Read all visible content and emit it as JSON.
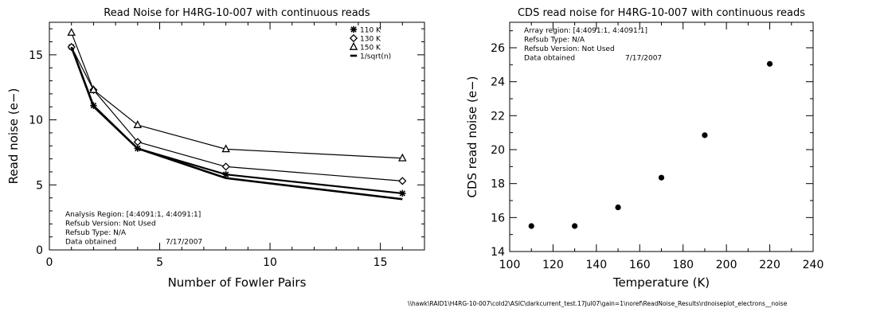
{
  "chart_data": [
    {
      "type": "line",
      "title": "Read Noise for H4RG-10-007 with continuous reads",
      "xlabel": "Number of Fowler Pairs",
      "ylabel": "Read noise (e−)",
      "xlim": [
        0,
        17
      ],
      "ylim": [
        0,
        17.5
      ],
      "xticks": [
        0,
        5,
        10,
        15
      ],
      "yticks": [
        0,
        5,
        10,
        15
      ],
      "legend_position": "top-right",
      "series": [
        {
          "name": "110 K",
          "marker": "asterisk",
          "x": [
            1,
            2,
            4,
            8,
            16
          ],
          "y": [
            15.6,
            11.1,
            7.8,
            5.8,
            4.35
          ]
        },
        {
          "name": "130 K",
          "marker": "diamond",
          "x": [
            1,
            2,
            4,
            8,
            16
          ],
          "y": [
            15.6,
            12.3,
            8.3,
            6.4,
            5.3
          ]
        },
        {
          "name": "150 K",
          "marker": "triangle",
          "x": [
            1,
            2,
            4,
            8,
            16
          ],
          "y": [
            16.7,
            12.3,
            9.6,
            7.75,
            7.05
          ]
        },
        {
          "name": "1/sqrt(n)",
          "marker": "line",
          "x": [
            1,
            2,
            4,
            8,
            16
          ],
          "y": [
            15.6,
            11.03,
            7.8,
            5.52,
            3.9
          ]
        }
      ],
      "annotations": [
        {
          "label": "Analysis Region:",
          "value": "[4:4091:1, 4:4091:1]"
        },
        {
          "label": "Refsub Version:",
          "value": "Not Used"
        },
        {
          "label": "Refsub Type:",
          "value": "N/A"
        },
        {
          "label": "Data obtained",
          "value": "7/17/2007"
        }
      ]
    },
    {
      "type": "scatter",
      "title": "CDS read noise for H4RG-10-007 with continuous reads",
      "xlabel": "Temperature (K)",
      "ylabel": "CDS read noise (e−)",
      "xlim": [
        100,
        240
      ],
      "ylim": [
        14,
        27.5
      ],
      "xticks": [
        100,
        120,
        140,
        160,
        180,
        200,
        220,
        240
      ],
      "yticks": [
        14,
        16,
        18,
        20,
        22,
        24,
        26
      ],
      "x": [
        110,
        130,
        150,
        170,
        190,
        220
      ],
      "y": [
        15.5,
        15.5,
        16.6,
        18.35,
        20.85,
        25.05
      ],
      "annotations": [
        {
          "label": "Array region:",
          "value": "[4:4091:1, 4:4091:1]"
        },
        {
          "label": "Refsub Type:",
          "value": "N/A"
        },
        {
          "label": "Refsub Version:",
          "value": "Not Used"
        },
        {
          "label": "Data obtained",
          "value": "7/17/2007"
        }
      ]
    }
  ],
  "footer_path": "\\\\hawk\\RAID1\\H4RG-10-007\\cold2\\ASIC\\darkcurrent_test.17Jul07\\gain=1\\noref\\ReadNoise_Results\\rdnoiseplot_electrons__noise"
}
